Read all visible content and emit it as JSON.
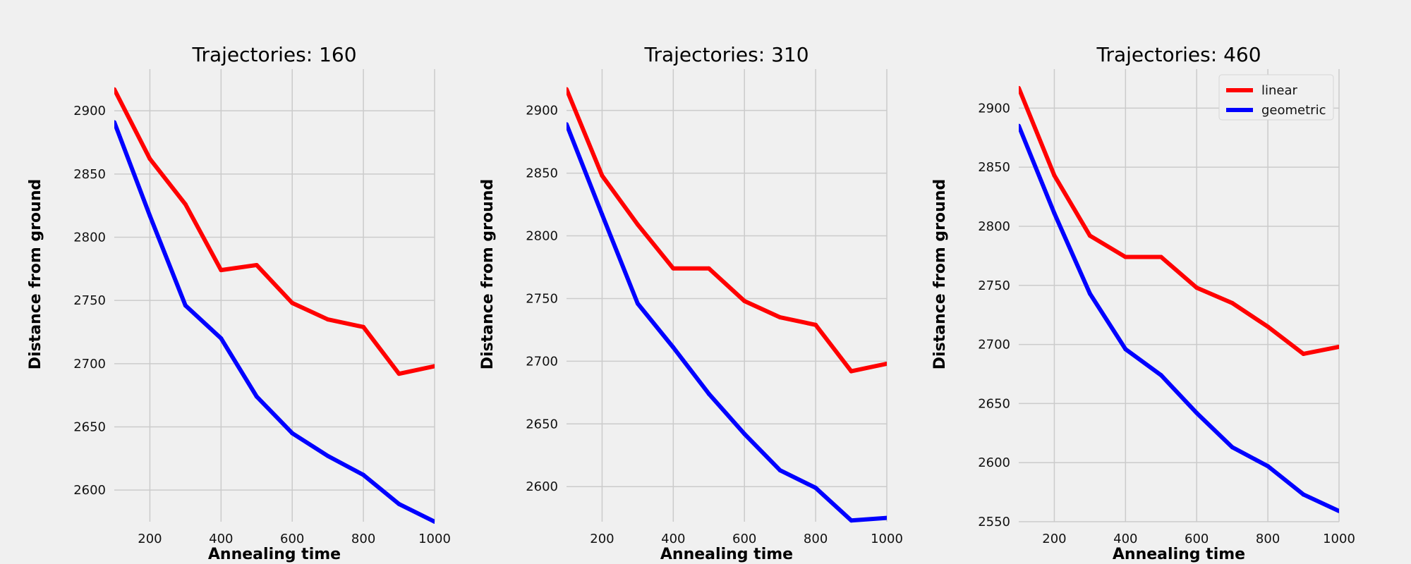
{
  "chart_data": [
    {
      "type": "line",
      "title": "Trajectories: 160",
      "xlabel": "Annealing time",
      "ylabel": "Distance from ground",
      "x": [
        100,
        200,
        300,
        400,
        500,
        600,
        700,
        800,
        900,
        1000
      ],
      "xlim": [
        100,
        1000
      ],
      "ylim": [
        2575,
        2933
      ],
      "xticks": [
        200,
        400,
        600,
        800,
        1000
      ],
      "yticks": [
        2600,
        2650,
        2700,
        2750,
        2800,
        2850,
        2900
      ],
      "grid": true,
      "legend": false,
      "series": [
        {
          "name": "linear",
          "color": "#ff0000",
          "values": [
            2917,
            2862,
            2826,
            2774,
            2778,
            2748,
            2735,
            2729,
            2692,
            2698
          ]
        },
        {
          "name": "geometric",
          "color": "#0000ff",
          "values": [
            2891,
            2817,
            2746,
            2720,
            2674,
            2645,
            2627,
            2612,
            2589,
            2575
          ]
        }
      ]
    },
    {
      "type": "line",
      "title": "Trajectories: 310",
      "xlabel": "Annealing time",
      "ylabel": "Distance from ground",
      "x": [
        100,
        200,
        300,
        400,
        500,
        600,
        700,
        800,
        900,
        1000
      ],
      "xlim": [
        100,
        1000
      ],
      "ylim": [
        2572,
        2933
      ],
      "xticks": [
        200,
        400,
        600,
        800,
        1000
      ],
      "yticks": [
        2600,
        2650,
        2700,
        2750,
        2800,
        2850,
        2900
      ],
      "grid": true,
      "legend": false,
      "series": [
        {
          "name": "linear",
          "color": "#ff0000",
          "values": [
            2917,
            2848,
            2809,
            2774,
            2774,
            2748,
            2735,
            2729,
            2692,
            2698
          ]
        },
        {
          "name": "geometric",
          "color": "#0000ff",
          "values": [
            2889,
            2817,
            2746,
            2711,
            2674,
            2642,
            2613,
            2599,
            2573,
            2575
          ]
        }
      ]
    },
    {
      "type": "line",
      "title": "Trajectories: 460",
      "xlabel": "Annealing time",
      "ylabel": "Distance from ground",
      "x": [
        100,
        200,
        300,
        400,
        500,
        600,
        700,
        800,
        900,
        1000
      ],
      "xlim": [
        100,
        1000
      ],
      "ylim": [
        2550,
        2933
      ],
      "xticks": [
        200,
        400,
        600,
        800,
        1000
      ],
      "yticks": [
        2550,
        2600,
        2650,
        2700,
        2750,
        2800,
        2850,
        2900
      ],
      "grid": true,
      "legend": "top-right",
      "series": [
        {
          "name": "linear",
          "color": "#ff0000",
          "values": [
            2917,
            2843,
            2792,
            2774,
            2774,
            2748,
            2735,
            2715,
            2692,
            2698
          ]
        },
        {
          "name": "geometric",
          "color": "#0000ff",
          "values": [
            2885,
            2811,
            2743,
            2696,
            2674,
            2642,
            2613,
            2597,
            2573,
            2559
          ]
        }
      ]
    }
  ]
}
